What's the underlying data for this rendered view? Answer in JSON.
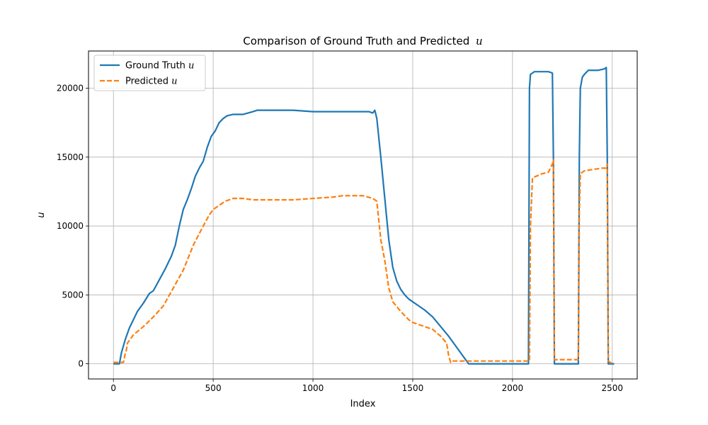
{
  "chart_data": {
    "type": "line",
    "title": "Comparison of Ground Truth and Predicted",
    "title_var": "u",
    "xlabel": "Index",
    "ylabel": "u",
    "xlim": [
      -125,
      2625
    ],
    "ylim": [
      -1100,
      22700
    ],
    "xticks": [
      0,
      500,
      1000,
      1500,
      2000,
      2500
    ],
    "yticks": [
      0,
      5000,
      10000,
      15000,
      20000
    ],
    "grid": true,
    "legend": "top-left",
    "series": [
      {
        "name": "Ground Truth",
        "name_var": "u",
        "color": "#1f77b4",
        "style": "solid",
        "x": [
          0,
          30,
          40,
          60,
          80,
          100,
          120,
          150,
          180,
          200,
          230,
          260,
          290,
          310,
          330,
          350,
          370,
          390,
          410,
          430,
          450,
          470,
          490,
          510,
          530,
          550,
          570,
          600,
          650,
          700,
          720,
          800,
          900,
          1000,
          1100,
          1200,
          1280,
          1300,
          1310,
          1320,
          1340,
          1360,
          1380,
          1400,
          1420,
          1440,
          1460,
          1480,
          1500,
          1530,
          1560,
          1600,
          1640,
          1680,
          1710,
          1740,
          1760,
          1775,
          1780,
          2000,
          2080,
          2085,
          2090,
          2100,
          2110,
          2130,
          2150,
          2180,
          2200,
          2205,
          2210,
          2300,
          2330,
          2335,
          2340,
          2350,
          2360,
          2380,
          2400,
          2430,
          2460,
          2470,
          2475,
          2480,
          2500,
          2510
        ],
        "y": [
          0,
          0,
          800,
          1800,
          2600,
          3200,
          3800,
          4400,
          5100,
          5300,
          6100,
          6900,
          7800,
          8600,
          10000,
          11200,
          11900,
          12700,
          13600,
          14200,
          14700,
          15700,
          16500,
          16900,
          17500,
          17800,
          18000,
          18100,
          18100,
          18300,
          18400,
          18400,
          18400,
          18300,
          18300,
          18300,
          18300,
          18200,
          18400,
          17800,
          15000,
          12000,
          9000,
          7000,
          6000,
          5400,
          5000,
          4700,
          4500,
          4200,
          3900,
          3400,
          2700,
          2000,
          1400,
          800,
          400,
          100,
          0,
          0,
          0,
          20000,
          21000,
          21100,
          21200,
          21200,
          21200,
          21200,
          21100,
          15000,
          0,
          0,
          0,
          15000,
          20000,
          20800,
          21000,
          21300,
          21300,
          21300,
          21400,
          21500,
          15000,
          0,
          0,
          0
        ]
      },
      {
        "name": "Predicted",
        "name_var": "u",
        "color": "#ff7f0e",
        "style": "dashed",
        "x": [
          0,
          50,
          60,
          65,
          70,
          80,
          100,
          150,
          200,
          250,
          300,
          350,
          400,
          450,
          480,
          500,
          530,
          560,
          600,
          650,
          700,
          800,
          900,
          1000,
          1100,
          1150,
          1200,
          1250,
          1300,
          1320,
          1340,
          1360,
          1380,
          1400,
          1440,
          1480,
          1500,
          1560,
          1600,
          1640,
          1670,
          1680,
          1690,
          1700,
          1750,
          2085,
          2090,
          2100,
          2150,
          2180,
          2200,
          2205,
          2210,
          2330,
          2335,
          2340,
          2360,
          2400,
          2450,
          2470,
          2475,
          2480,
          2500
        ],
        "y": [
          100,
          100,
          800,
          1000,
          1500,
          1700,
          2100,
          2700,
          3400,
          4200,
          5500,
          6800,
          8600,
          10000,
          10800,
          11200,
          11500,
          11800,
          12000,
          12000,
          11900,
          11900,
          11900,
          12000,
          12100,
          12200,
          12200,
          12200,
          12000,
          11800,
          9000,
          7500,
          5500,
          4500,
          3800,
          3200,
          3000,
          2700,
          2500,
          2000,
          1500,
          600,
          100,
          200,
          200,
          200,
          10000,
          13500,
          13800,
          13900,
          14500,
          14800,
          300,
          300,
          11000,
          13800,
          14000,
          14100,
          14200,
          14200,
          14500,
          200,
          0
        ]
      }
    ]
  }
}
